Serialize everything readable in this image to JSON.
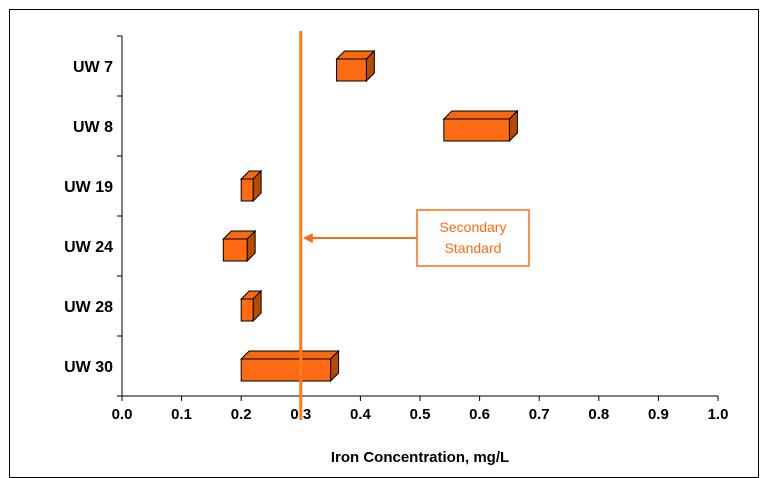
{
  "chart_data": {
    "type": "bar",
    "orientation": "horizontal-floating",
    "categories": [
      "UW 7",
      "UW 8",
      "UW 19",
      "UW 24",
      "UW 28",
      "UW 30"
    ],
    "ranges": [
      {
        "name": "UW 7",
        "min": 0.36,
        "max": 0.41
      },
      {
        "name": "UW 8",
        "min": 0.54,
        "max": 0.65
      },
      {
        "name": "UW 19",
        "min": 0.2,
        "max": 0.22
      },
      {
        "name": "UW 24",
        "min": 0.17,
        "max": 0.21
      },
      {
        "name": "UW 28",
        "min": 0.2,
        "max": 0.22
      },
      {
        "name": "UW 30",
        "min": 0.2,
        "max": 0.35
      }
    ],
    "xlabel": "Iron Concentration, mg/L",
    "xlim": [
      0.0,
      1.0
    ],
    "xticks": [
      "0.0",
      "0.1",
      "0.2",
      "0.3",
      "0.4",
      "0.5",
      "0.6",
      "0.7",
      "0.8",
      "0.9",
      "1.0"
    ],
    "grid": false,
    "reference_line": {
      "value": 0.3,
      "label_line1": "Secondary",
      "label_line2": "Standard"
    },
    "colors": {
      "bar_front": "#ff6a13",
      "bar_top": "#f56a0d",
      "bar_side": "#b84a00",
      "reference": "#ff7a1a",
      "annotation": "#ff6a13"
    }
  }
}
